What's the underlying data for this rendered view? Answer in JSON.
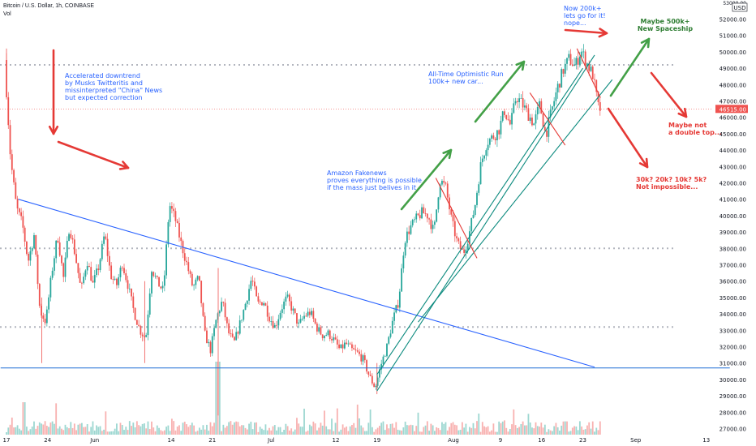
{
  "header": {
    "symbol": "Bitcoin / U.S. Dollar, 1h, COINBASE",
    "volume_label": "Vol",
    "currency_badge": "USD"
  },
  "colors": {
    "up": "#26a69a",
    "down": "#ef5350",
    "trendline_blue": "#2962ff",
    "channel_teal": "#0b8a7e",
    "support_line": "#1e6fd6",
    "arrow_red": "#e53935",
    "arrow_green": "#43a047",
    "note_blue": "#2962ff",
    "note_red": "#e53935",
    "note_green": "#2e7d32",
    "price_tag": "#ef5350",
    "dotted_level": "#b2b5be"
  },
  "chart_data": {
    "type": "candlestick",
    "price_axis": {
      "min": 26500,
      "max": 53000,
      "ticks": [
        27000,
        28000,
        29000,
        30000,
        31000,
        32000,
        33000,
        34000,
        35000,
        36000,
        37000,
        38000,
        39000,
        40000,
        41000,
        42000,
        43000,
        44000,
        45000,
        46000,
        47000,
        48000,
        49000,
        50000,
        51000,
        52000
      ],
      "tick_labels": [
        "27000.00",
        "28000.00",
        "29000.00",
        "30000.00",
        "31000.00",
        "32000.00",
        "33000.00",
        "34000.00",
        "35000.00",
        "36000.00",
        "37000.00",
        "38000.00",
        "39000.00",
        "40000.00",
        "41000.00",
        "42000.00",
        "43000.00",
        "44000.00",
        "45000.00",
        "46000.00",
        "47000.00",
        "48000.00",
        "49000.00",
        "50000.00",
        "51000.00",
        "52000.00"
      ],
      "top_label": "53000.00"
    },
    "time_axis": {
      "labels": [
        {
          "text": "17",
          "day": 0
        },
        {
          "text": "24",
          "day": 7
        },
        {
          "text": "Jun",
          "day": 15
        },
        {
          "text": "14",
          "day": 28
        },
        {
          "text": "21",
          "day": 35
        },
        {
          "text": "Jul",
          "day": 45
        },
        {
          "text": "12",
          "day": 56
        },
        {
          "text": "19",
          "day": 63
        },
        {
          "text": "Aug",
          "day": 76
        },
        {
          "text": "9",
          "day": 84
        },
        {
          "text": "16",
          "day": 91
        },
        {
          "text": "23",
          "day": 98
        },
        {
          "text": "Sep",
          "day": 107
        },
        {
          "text": "13",
          "day": 119
        }
      ],
      "last_data_day": 101
    },
    "current_price": 46515,
    "current_price_label": "46515.00",
    "price_path": [
      [
        0,
        49500
      ],
      [
        1,
        43500
      ],
      [
        2,
        40500
      ],
      [
        3,
        39500
      ],
      [
        4,
        37200
      ],
      [
        5,
        38800
      ],
      [
        6,
        34200
      ],
      [
        7,
        33500
      ],
      [
        8,
        36500
      ],
      [
        9,
        38800
      ],
      [
        10,
        36200
      ],
      [
        11,
        39400
      ],
      [
        12,
        37600
      ],
      [
        13,
        35400
      ],
      [
        14,
        37300
      ],
      [
        15,
        35800
      ],
      [
        16,
        36900
      ],
      [
        17,
        38900
      ],
      [
        18,
        36400
      ],
      [
        19,
        35700
      ],
      [
        20,
        37100
      ],
      [
        21,
        35700
      ],
      [
        22,
        34100
      ],
      [
        23,
        33000
      ],
      [
        24,
        32500
      ],
      [
        25,
        36800
      ],
      [
        26,
        35900
      ],
      [
        27,
        35400
      ],
      [
        28,
        40700
      ],
      [
        29,
        39800
      ],
      [
        30,
        38300
      ],
      [
        31,
        37000
      ],
      [
        32,
        35600
      ],
      [
        33,
        36200
      ],
      [
        34,
        32800
      ],
      [
        35,
        31800
      ],
      [
        36,
        33700
      ],
      [
        37,
        34800
      ],
      [
        38,
        32900
      ],
      [
        39,
        32200
      ],
      [
        40,
        33400
      ],
      [
        41,
        34700
      ],
      [
        42,
        36200
      ],
      [
        43,
        34600
      ],
      [
        44,
        34800
      ],
      [
        45,
        33800
      ],
      [
        46,
        33200
      ],
      [
        47,
        34300
      ],
      [
        48,
        35000
      ],
      [
        49,
        34200
      ],
      [
        50,
        33300
      ],
      [
        51,
        33900
      ],
      [
        52,
        34100
      ],
      [
        53,
        33200
      ],
      [
        54,
        32700
      ],
      [
        55,
        32800
      ],
      [
        56,
        32400
      ],
      [
        57,
        31800
      ],
      [
        58,
        32200
      ],
      [
        59,
        31800
      ],
      [
        60,
        31600
      ],
      [
        61,
        31200
      ],
      [
        62,
        30200
      ],
      [
        63,
        29500
      ],
      [
        64,
        30900
      ],
      [
        65,
        32000
      ],
      [
        66,
        33600
      ],
      [
        67,
        34800
      ],
      [
        68,
        38500
      ],
      [
        69,
        39300
      ],
      [
        70,
        39800
      ],
      [
        71,
        40200
      ],
      [
        72,
        40000
      ],
      [
        73,
        39000
      ],
      [
        74,
        42200
      ],
      [
        75,
        41700
      ],
      [
        76,
        39700
      ],
      [
        77,
        38300
      ],
      [
        78,
        37700
      ],
      [
        79,
        38900
      ],
      [
        80,
        40700
      ],
      [
        81,
        43200
      ],
      [
        82,
        44500
      ],
      [
        83,
        44800
      ],
      [
        84,
        45200
      ],
      [
        85,
        46400
      ],
      [
        86,
        45500
      ],
      [
        87,
        47300
      ],
      [
        88,
        46800
      ],
      [
        89,
        46200
      ],
      [
        90,
        45600
      ],
      [
        91,
        46800
      ],
      [
        92,
        44900
      ],
      [
        93,
        46400
      ],
      [
        94,
        47800
      ],
      [
        95,
        48900
      ],
      [
        96,
        49600
      ],
      [
        97,
        49100
      ],
      [
        98,
        50100
      ],
      [
        99,
        49300
      ],
      [
        100,
        48600
      ],
      [
        101,
        46500
      ]
    ],
    "drawings": {
      "descending_trendline": {
        "from": [
          2,
          41000
        ],
        "to": [
          100,
          30750
        ]
      },
      "support_line": {
        "from": [
          -1,
          30700
        ],
        "to": [
          123,
          30700
        ]
      },
      "dotted_levels": [
        49200,
        38000,
        33200
      ],
      "channel_lines": [
        {
          "from": [
            63,
            29300
          ],
          "to": [
            100,
            49800
          ]
        },
        {
          "from": [
            63,
            30300
          ],
          "to": [
            98,
            49000
          ]
        },
        {
          "from": [
            70,
            33500
          ],
          "to": [
            103,
            48300
          ]
        }
      ],
      "red_segments": [
        {
          "from": [
            73,
            42300
          ],
          "to": [
            80,
            37400
          ]
        },
        {
          "from": [
            89,
            47500
          ],
          "to": [
            95,
            44300
          ]
        },
        {
          "from": [
            97,
            50200
          ],
          "to": [
            101,
            47200
          ]
        }
      ]
    },
    "annotations": {
      "note_downtrend": [
        "Accelerated downtrend",
        "by Musks Twitteritis and",
        "missinterpreted \"China\" News",
        "but expected correction"
      ],
      "note_amazon": [
        "Amazon Fakenews",
        "proves everything is possible",
        "if the mass just belives in it"
      ],
      "note_ath": [
        "All-Time Optimistic Run",
        "100k+ new car..."
      ],
      "note_200k": [
        "Now 200k+",
        "lets go for it!",
        "nope..."
      ],
      "note_500k": [
        "Maybe 500k+",
        "New Spaceship"
      ],
      "note_double_top": [
        "Maybe not",
        "a double top..."
      ],
      "note_crash": [
        "30k? 20k? 10k? 5k?",
        "Not impossible..."
      ]
    }
  }
}
